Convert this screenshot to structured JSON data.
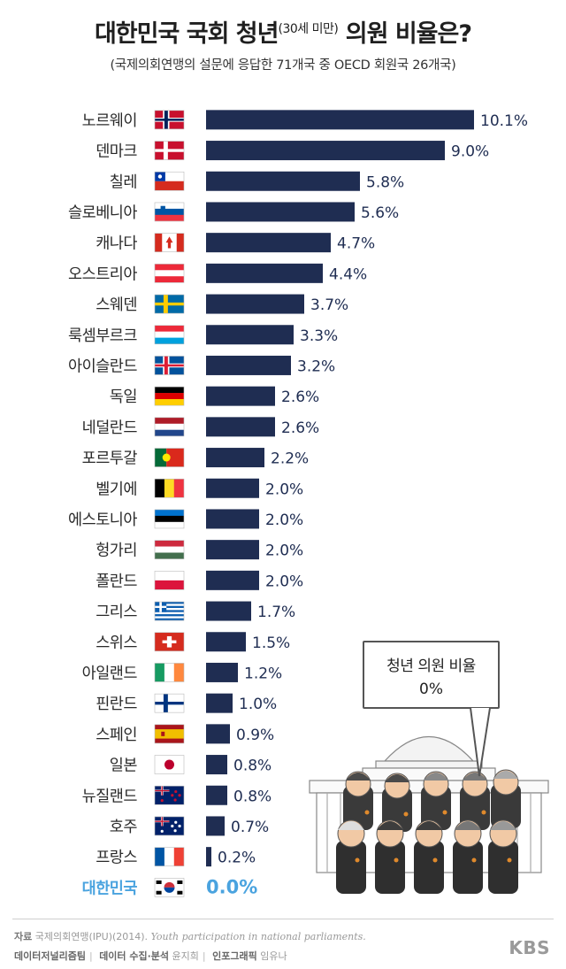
{
  "title": {
    "main": "대한민국 국회 청년",
    "sup": "(30세 미만)",
    "tail": "의원 비율은?"
  },
  "subtitle": "(국제의회연맹의 설문에 응답한 71개국 중 OECD 회원국 26개국)",
  "chart_data": {
    "type": "bar",
    "orientation": "horizontal",
    "unit": "%",
    "categories": [
      "노르웨이",
      "덴마크",
      "칠레",
      "슬로베니아",
      "캐나다",
      "오스트리아",
      "스웨덴",
      "룩셈부르크",
      "아이슬란드",
      "독일",
      "네덜란드",
      "포르투갈",
      "벨기에",
      "에스토니아",
      "헝가리",
      "폴란드",
      "그리스",
      "스위스",
      "아일랜드",
      "핀란드",
      "스페인",
      "일본",
      "뉴질랜드",
      "호주",
      "프랑스",
      "대한민국"
    ],
    "values": [
      10.1,
      9.0,
      5.8,
      5.6,
      4.7,
      4.4,
      3.7,
      3.3,
      3.2,
      2.6,
      2.6,
      2.2,
      2.0,
      2.0,
      2.0,
      2.0,
      1.7,
      1.5,
      1.2,
      1.0,
      0.9,
      0.8,
      0.8,
      0.7,
      0.2,
      0.0
    ],
    "value_labels": [
      "10.1%",
      "9.0%",
      "5.8%",
      "5.6%",
      "4.7%",
      "4.4%",
      "3.7%",
      "3.3%",
      "3.2%",
      "2.6%",
      "2.6%",
      "2.2%",
      "2.0%",
      "2.0%",
      "2.0%",
      "2.0%",
      "1.7%",
      "1.5%",
      "1.2%",
      "1.0%",
      "0.9%",
      "0.8%",
      "0.8%",
      "0.7%",
      "0.2%",
      "0.0%"
    ],
    "flags": [
      "norway",
      "denmark",
      "chile",
      "slovenia",
      "canada",
      "austria",
      "sweden",
      "luxembourg",
      "iceland",
      "germany",
      "netherlands",
      "portugal",
      "belgium",
      "estonia",
      "hungary",
      "poland",
      "greece",
      "switzerland",
      "ireland",
      "finland",
      "spain",
      "japan",
      "new-zealand",
      "australia",
      "france",
      "south-korea"
    ],
    "highlight_category": "대한민국",
    "colors": {
      "bar": "#1f2d52",
      "label": "#1f2d52",
      "highlight": "#4aa3df"
    },
    "xlim": [
      0,
      10.1
    ],
    "grid": false,
    "legend": "none"
  },
  "illustration": {
    "bubble_line1": "청년 의원 비율",
    "bubble_line2": "0%"
  },
  "footer": {
    "source_label": "자료",
    "source_text": "국제의회연맹(IPU)(2014).",
    "source_title": "Youth participation in national parliaments.",
    "team": "데이터저널리즘팀",
    "collect_label": "데이터 수집·분석",
    "collect_name": "윤지희",
    "infographic_label": "인포그래픽",
    "infographic_name": "임유나",
    "logo": "KBS"
  }
}
